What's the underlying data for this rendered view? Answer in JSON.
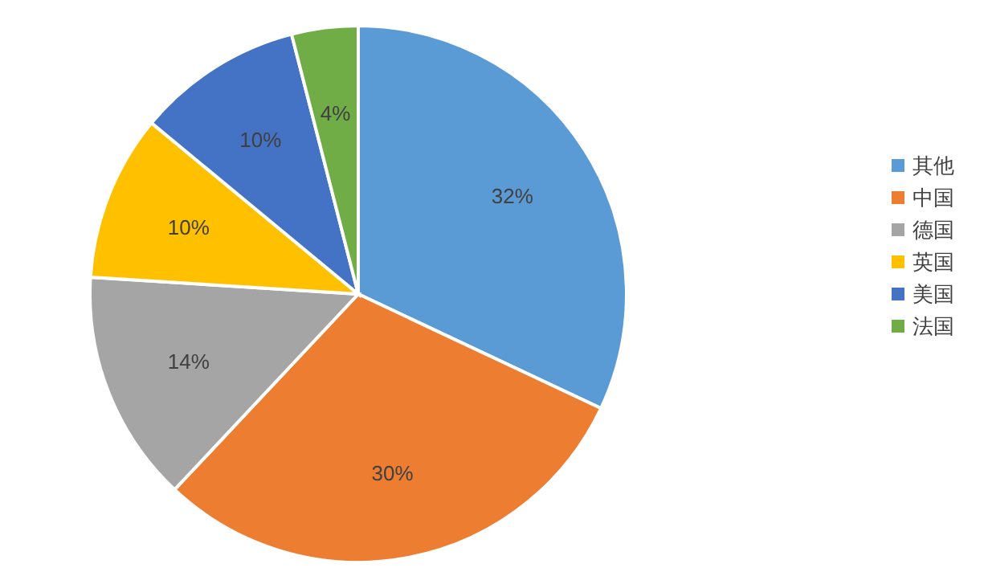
{
  "chart_data": {
    "type": "pie",
    "categories": [
      "其他",
      "中国",
      "德国",
      "英国",
      "美国",
      "法国"
    ],
    "values": [
      32,
      30,
      14,
      10,
      10,
      4
    ],
    "colors": [
      "#5b9bd5",
      "#ed7d31",
      "#a5a5a5",
      "#ffc000",
      "#4472c4",
      "#70ad47"
    ],
    "value_labels": [
      "32%",
      "30%",
      "14%",
      "10%",
      "10%",
      "4%"
    ],
    "legend": "right"
  }
}
